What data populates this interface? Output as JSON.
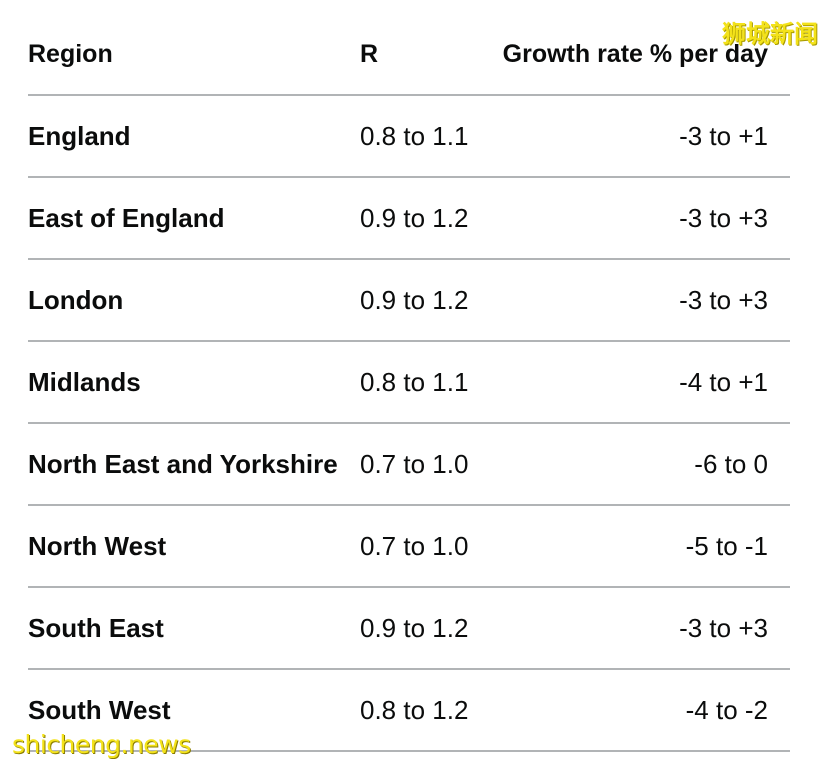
{
  "table": {
    "headers": {
      "region": "Region",
      "r": "R",
      "growth": "Growth rate % per day"
    },
    "rows": [
      {
        "region": "England",
        "r": "0.8 to 1.1",
        "growth": "-3 to +1"
      },
      {
        "region": "East of England",
        "r": "0.9 to 1.2",
        "growth": "-3 to +3"
      },
      {
        "region": "London",
        "r": "0.9 to 1.2",
        "growth": "-3 to +3"
      },
      {
        "region": "Midlands",
        "r": "0.8 to 1.1",
        "growth": "-4 to +1"
      },
      {
        "region": "North East and Yorkshire",
        "r": "0.7 to 1.0",
        "growth": "-6 to 0"
      },
      {
        "region": "North West",
        "r": "0.7 to 1.0",
        "growth": "-5 to -1"
      },
      {
        "region": "South East",
        "r": "0.9 to 1.2",
        "growth": "-3 to +3"
      },
      {
        "region": "South West",
        "r": "0.8 to 1.2",
        "growth": "-4 to -2"
      }
    ]
  },
  "watermarks": {
    "top_right": "狮城新闻",
    "bottom_left": "shicheng.news"
  },
  "colors": {
    "text": "#0b0c0c",
    "divider": "#b1b4b6",
    "watermark": "#f3e21a"
  }
}
